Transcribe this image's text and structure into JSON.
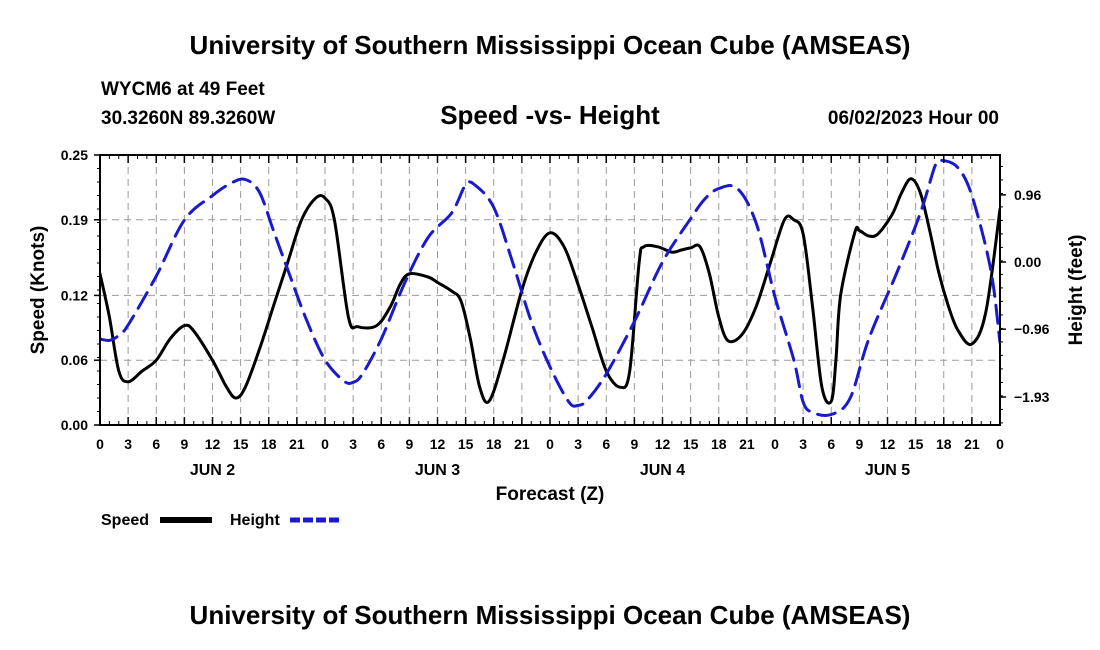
{
  "header": {
    "top_title": "University of Southern Mississippi Ocean Cube (AMSEAS)",
    "station": "WYCM6 at 49 Feet",
    "coords": "30.3260N  89.3260W",
    "date": "06/02/2023 Hour 00",
    "bottom_title": "University of Southern Mississippi Ocean Cube (AMSEAS)"
  },
  "legend": {
    "speed_label": "Speed",
    "height_label": "Height"
  },
  "colors": {
    "speed": "#000000",
    "height": "#1a1acc",
    "grid": "#9a9a9a"
  },
  "chart_data": {
    "type": "line",
    "title": "Speed -vs- Height",
    "xlabel": "Forecast (Z)",
    "ylabel": "Speed (Knots)",
    "y2label": "Height (feet)",
    "xlim": [
      0,
      96
    ],
    "ylim": [
      0,
      0.25
    ],
    "y2lim": [
      -2.33,
      1.53
    ],
    "x_ticks": [
      0,
      3,
      6,
      9,
      12,
      15,
      18,
      21,
      24,
      27,
      30,
      33,
      36,
      39,
      42,
      45,
      48,
      51,
      54,
      57,
      60,
      63,
      66,
      69,
      72,
      75,
      78,
      81,
      84,
      87,
      90,
      93,
      96
    ],
    "x_tick_labels": [
      "0",
      "3",
      "6",
      "9",
      "12",
      "15",
      "18",
      "21",
      "0",
      "3",
      "6",
      "9",
      "12",
      "15",
      "18",
      "21",
      "0",
      "3",
      "6",
      "9",
      "12",
      "15",
      "18",
      "21",
      "0",
      "3",
      "6",
      "9",
      "12",
      "15",
      "18",
      "21",
      "0"
    ],
    "day_labels": [
      {
        "x": 12,
        "label": "JUN 2"
      },
      {
        "x": 36,
        "label": "JUN 3"
      },
      {
        "x": 60,
        "label": "JUN 4"
      },
      {
        "x": 84,
        "label": "JUN 5"
      }
    ],
    "y_ticks": [
      0.0,
      0.06,
      0.12,
      0.19,
      0.25
    ],
    "y_tick_labels": [
      "0.00",
      "0.06",
      "0.12",
      "0.19",
      "0.25"
    ],
    "y2_ticks": [
      0.96,
      0.0,
      -0.96,
      -1.93
    ],
    "y2_tick_labels": [
      "0.96",
      "0.00",
      "−0.96",
      "−1.93"
    ],
    "series": [
      {
        "name": "Speed",
        "axis": "left",
        "x": [
          0,
          1,
          2,
          3,
          4.5,
          6,
          7.5,
          9,
          10,
          12,
          13.5,
          14.5,
          15.5,
          17,
          18.5,
          20,
          21.5,
          23,
          24,
          25,
          26.5,
          27.5,
          29.5,
          31,
          32,
          33,
          35,
          36,
          37.5,
          38.5,
          39.5,
          40.5,
          41.5,
          43,
          45,
          46.5,
          48,
          49.5,
          51,
          52.5,
          54,
          55.5,
          56.5,
          57.5,
          58,
          59.5,
          61,
          62,
          63,
          64,
          65,
          66,
          67,
          68.5,
          70,
          71.5,
          73,
          74,
          75,
          76,
          77,
          78,
          78.5,
          79,
          80.5,
          81,
          82,
          83,
          84.5,
          85.5,
          86.5,
          87.5,
          88.5,
          89.5,
          90.5,
          91.5,
          93,
          94.5,
          96
        ],
        "values": [
          0.14,
          0.1,
          0.05,
          0.04,
          0.05,
          0.06,
          0.08,
          0.092,
          0.087,
          0.06,
          0.035,
          0.025,
          0.035,
          0.07,
          0.11,
          0.15,
          0.19,
          0.21,
          0.21,
          0.19,
          0.1,
          0.091,
          0.092,
          0.11,
          0.13,
          0.14,
          0.137,
          0.132,
          0.124,
          0.115,
          0.08,
          0.035,
          0.022,
          0.06,
          0.125,
          0.16,
          0.178,
          0.165,
          0.13,
          0.09,
          0.05,
          0.035,
          0.05,
          0.15,
          0.165,
          0.165,
          0.16,
          0.162,
          0.164,
          0.165,
          0.14,
          0.1,
          0.078,
          0.084,
          0.11,
          0.15,
          0.19,
          0.19,
          0.177,
          0.11,
          0.035,
          0.022,
          0.06,
          0.12,
          0.178,
          0.18,
          0.175,
          0.177,
          0.195,
          0.215,
          0.228,
          0.215,
          0.18,
          0.14,
          0.11,
          0.088,
          0.075,
          0.105,
          0.2
        ]
      },
      {
        "name": "Height",
        "axis": "right",
        "x": [
          0,
          1,
          2,
          3,
          6,
          9,
          12,
          14,
          15.5,
          17,
          18.5,
          20,
          22,
          24,
          26,
          27,
          28,
          30,
          32.5,
          35,
          37.5,
          39,
          40,
          42,
          44,
          46,
          48,
          50,
          51,
          52,
          54,
          57,
          60,
          63,
          64.5,
          66,
          68,
          70,
          72,
          74,
          75,
          76,
          78,
          80,
          82,
          85,
          87.5,
          89,
          89.5,
          90,
          91.5,
          93,
          95,
          96
        ],
        "values": [
          -1.1,
          -1.12,
          -1.05,
          -0.9,
          -0.2,
          0.6,
          0.95,
          1.13,
          1.18,
          1.0,
          0.45,
          -0.1,
          -0.82,
          -1.4,
          -1.7,
          -1.72,
          -1.6,
          -1.1,
          -0.3,
          0.35,
          0.7,
          1.1,
          1.1,
          0.78,
          0.0,
          -0.85,
          -1.5,
          -2.0,
          -2.05,
          -1.97,
          -1.6,
          -0.85,
          0.0,
          0.62,
          0.9,
          1.05,
          1.05,
          0.55,
          -0.5,
          -1.4,
          -2.0,
          -2.15,
          -2.18,
          -1.95,
          -1.1,
          -0.15,
          0.7,
          1.35,
          1.42,
          1.45,
          1.35,
          0.95,
          -0.1,
          -1.15
        ]
      }
    ]
  }
}
